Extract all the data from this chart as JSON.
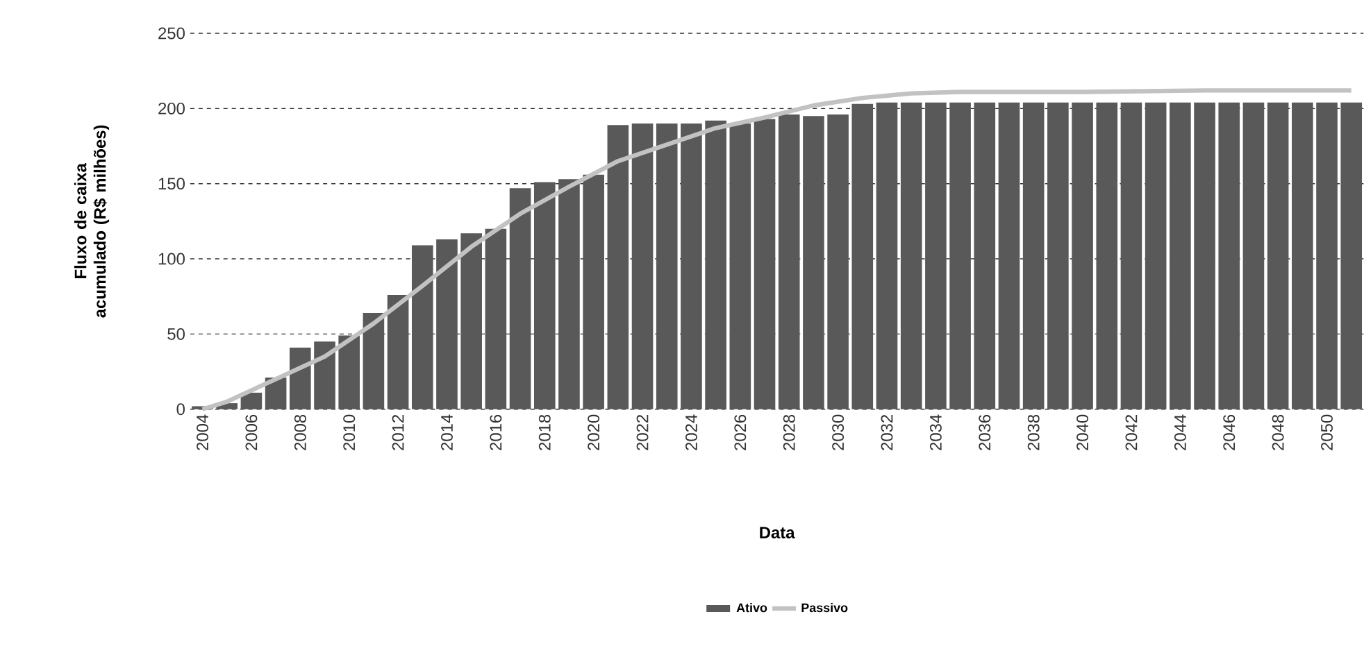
{
  "chart_data": {
    "type": "bar",
    "xlabel": "Data",
    "ylabel": "Fluxo de caixa acumulado (R$ milhões)",
    "x": [
      2004,
      2005,
      2006,
      2007,
      2008,
      2009,
      2010,
      2011,
      2012,
      2013,
      2014,
      2015,
      2016,
      2017,
      2018,
      2019,
      2020,
      2021,
      2022,
      2023,
      2024,
      2025,
      2026,
      2027,
      2028,
      2029,
      2030,
      2031,
      2032,
      2033,
      2034,
      2035,
      2036,
      2037,
      2038,
      2039,
      2040,
      2041,
      2042,
      2043,
      2044,
      2045,
      2046,
      2047,
      2048,
      2049,
      2050,
      2051
    ],
    "series": [
      {
        "name": "Ativo",
        "color": "#595959",
        "values": [
          2,
          4,
          11,
          21,
          41,
          45,
          49,
          64,
          76,
          109,
          113,
          117,
          120,
          147,
          151,
          153,
          156,
          189,
          190,
          190,
          190,
          192,
          190,
          193,
          196,
          195,
          196,
          203,
          204,
          204,
          204,
          204,
          204,
          204,
          204,
          204,
          204,
          204,
          204,
          204,
          204,
          204,
          204,
          204,
          204,
          204,
          204,
          204
        ]
      },
      {
        "name": "Passivo",
        "type": "line",
        "color": "#c2c2c2",
        "x": [
          2004,
          2005,
          2007,
          2009,
          2011,
          2013,
          2015,
          2017,
          2019,
          2021,
          2023,
          2025,
          2027,
          2029,
          2031,
          2033,
          2035,
          2040,
          2045,
          2051
        ],
        "values": [
          0,
          5,
          20,
          35,
          57,
          82,
          108,
          130,
          148,
          165,
          176,
          187,
          194,
          202,
          207,
          210,
          211,
          211,
          212,
          212
        ]
      }
    ],
    "xlim": [
      2003.5,
      2051.5
    ],
    "xticks": [
      2004,
      2006,
      2008,
      2010,
      2012,
      2014,
      2016,
      2018,
      2020,
      2022,
      2024,
      2026,
      2028,
      2030,
      2032,
      2034,
      2036,
      2038,
      2040,
      2042,
      2044,
      2046,
      2048,
      2050
    ],
    "ylim": [
      0,
      250
    ],
    "yticks": [
      0,
      50,
      100,
      150,
      200,
      250
    ],
    "grid": "y",
    "legend": "bottom"
  }
}
